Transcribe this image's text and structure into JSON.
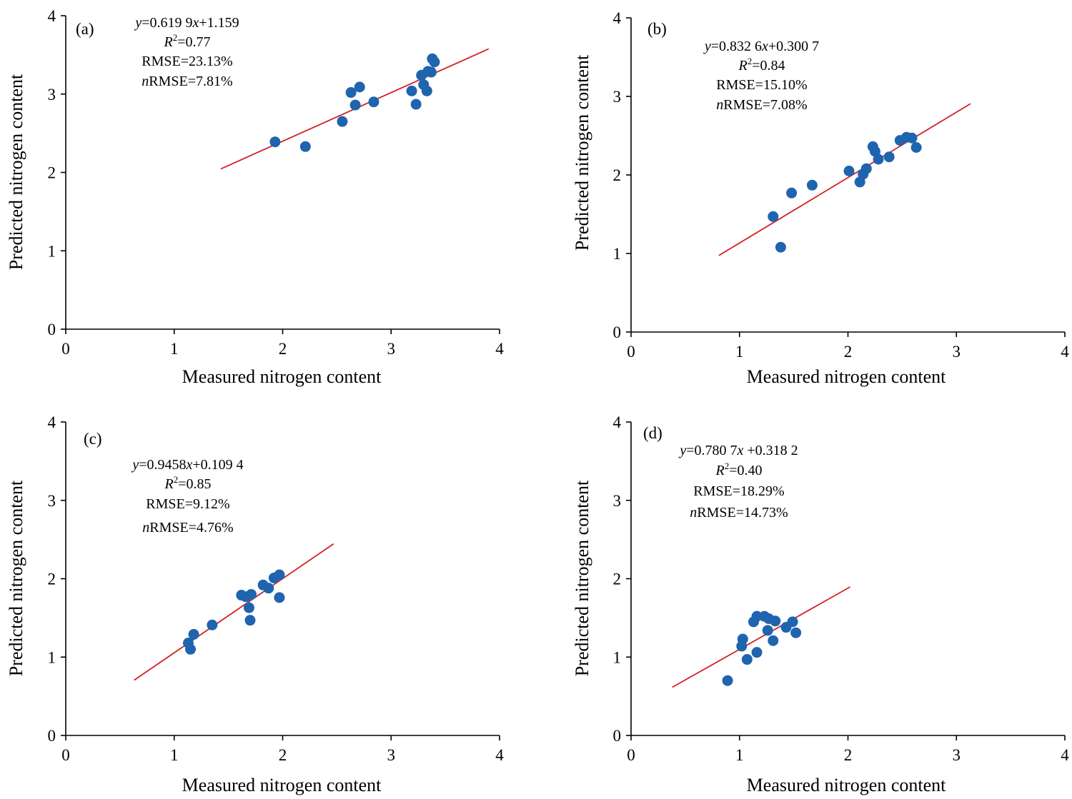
{
  "colors": {
    "point": "#1f64ae",
    "fit_line": "#d42027",
    "axis": "#000000"
  },
  "chart_data": [
    {
      "type": "scatter",
      "panel_label": "(a)",
      "xlabel": "Measured nitrogen content",
      "ylabel": "Predicted nitrogen content",
      "xlim": [
        0,
        4
      ],
      "ylim": [
        0,
        4
      ],
      "xticks": [
        "0",
        "1",
        "2",
        "3",
        "4"
      ],
      "yticks": [
        "0",
        "1",
        "2",
        "3",
        "4"
      ],
      "equation": {
        "y_var": "y",
        "rhs": "=0.619 9",
        "x_var": "x",
        "tail": "+1.159"
      },
      "r2": {
        "r": "R",
        "sup": "2",
        "value": "=0.77"
      },
      "rmse": "RMSE=23.13%",
      "nrmse": {
        "n": "n",
        "rest": "RMSE=7.81%"
      },
      "fit": {
        "slope": 0.6199,
        "intercept": 1.159,
        "x_range": [
          1.43,
          3.9
        ]
      },
      "points": [
        {
          "x": 1.93,
          "y": 2.39
        },
        {
          "x": 2.21,
          "y": 2.33
        },
        {
          "x": 2.55,
          "y": 2.65
        },
        {
          "x": 2.63,
          "y": 3.02
        },
        {
          "x": 2.67,
          "y": 2.86
        },
        {
          "x": 2.71,
          "y": 3.09
        },
        {
          "x": 2.84,
          "y": 2.9
        },
        {
          "x": 3.19,
          "y": 3.04
        },
        {
          "x": 3.23,
          "y": 2.87
        },
        {
          "x": 3.28,
          "y": 3.24
        },
        {
          "x": 3.3,
          "y": 3.12
        },
        {
          "x": 3.33,
          "y": 3.04
        },
        {
          "x": 3.34,
          "y": 3.29
        },
        {
          "x": 3.37,
          "y": 3.28
        },
        {
          "x": 3.38,
          "y": 3.45
        },
        {
          "x": 3.4,
          "y": 3.41
        }
      ]
    },
    {
      "type": "scatter",
      "panel_label": "(b)",
      "xlabel": "Measured nitrogen content",
      "ylabel": "Predicted nitrogen content",
      "xlim": [
        0,
        4
      ],
      "ylim": [
        0,
        4
      ],
      "xticks": [
        "0",
        "1",
        "2",
        "3",
        "4"
      ],
      "yticks": [
        "0",
        "1",
        "2",
        "3",
        "4"
      ],
      "equation": {
        "y_var": "y",
        "rhs": "=0.832 6",
        "x_var": "x",
        "tail": "+0.300 7"
      },
      "r2": {
        "r": "R",
        "sup": "2",
        "value": "=0.84"
      },
      "rmse": "RMSE=15.10%",
      "nrmse": {
        "n": "n",
        "rest": "RMSE=7.08%"
      },
      "fit": {
        "slope": 0.8326,
        "intercept": 0.3007,
        "x_range": [
          0.81,
          3.13
        ]
      },
      "points": [
        {
          "x": 1.31,
          "y": 1.47
        },
        {
          "x": 1.38,
          "y": 1.08
        },
        {
          "x": 1.48,
          "y": 1.77
        },
        {
          "x": 1.67,
          "y": 1.87
        },
        {
          "x": 2.01,
          "y": 2.05
        },
        {
          "x": 2.11,
          "y": 1.91
        },
        {
          "x": 2.14,
          "y": 2.01
        },
        {
          "x": 2.17,
          "y": 2.08
        },
        {
          "x": 2.23,
          "y": 2.36
        },
        {
          "x": 2.25,
          "y": 2.3
        },
        {
          "x": 2.28,
          "y": 2.2
        },
        {
          "x": 2.38,
          "y": 2.23
        },
        {
          "x": 2.48,
          "y": 2.44
        },
        {
          "x": 2.54,
          "y": 2.48
        },
        {
          "x": 2.59,
          "y": 2.47
        },
        {
          "x": 2.63,
          "y": 2.35
        }
      ]
    },
    {
      "type": "scatter",
      "panel_label": "(c)",
      "xlabel": "Measured nitrogen content",
      "ylabel": "Predicted nitrogen content",
      "xlim": [
        0,
        4
      ],
      "ylim": [
        0,
        4
      ],
      "xticks": [
        "0",
        "1",
        "2",
        "3",
        "4"
      ],
      "yticks": [
        "0",
        "1",
        "2",
        "3",
        "4"
      ],
      "equation": {
        "y_var": "y",
        "rhs": "=0.9458",
        "x_var": "x",
        "tail": "+0.109 4"
      },
      "r2": {
        "r": "R",
        "sup": "2",
        "value": "=0.85"
      },
      "rmse": "RMSE=9.12%",
      "nrmse": {
        "n": "n",
        "rest": "RMSE=4.76%"
      },
      "fit": {
        "slope": 0.9458,
        "intercept": 0.1094,
        "x_range": [
          0.63,
          2.47
        ]
      },
      "points": [
        {
          "x": 1.13,
          "y": 1.18
        },
        {
          "x": 1.15,
          "y": 1.1
        },
        {
          "x": 1.18,
          "y": 1.29
        },
        {
          "x": 1.35,
          "y": 1.41
        },
        {
          "x": 1.62,
          "y": 1.79
        },
        {
          "x": 1.66,
          "y": 1.77
        },
        {
          "x": 1.69,
          "y": 1.63
        },
        {
          "x": 1.7,
          "y": 1.47
        },
        {
          "x": 1.71,
          "y": 1.8
        },
        {
          "x": 1.82,
          "y": 1.92
        },
        {
          "x": 1.87,
          "y": 1.88
        },
        {
          "x": 1.92,
          "y": 2.01
        },
        {
          "x": 1.97,
          "y": 2.05
        },
        {
          "x": 1.97,
          "y": 1.76
        }
      ]
    },
    {
      "type": "scatter",
      "panel_label": "(d)",
      "xlabel": "Measured nitrogen content",
      "ylabel": "Predicted nitrogen content",
      "xlim": [
        0,
        4
      ],
      "ylim": [
        0,
        4
      ],
      "xticks": [
        "0",
        "1",
        "2",
        "3",
        "4"
      ],
      "yticks": [
        "0",
        "1",
        "2",
        "3",
        "4"
      ],
      "equation": {
        "y_var": "y",
        "rhs": "=0.780 7",
        "x_var": "x",
        "tail": " +0.318 2"
      },
      "r2": {
        "r": "R",
        "sup": "2",
        "value": "=0.40"
      },
      "rmse": "RMSE=18.29%",
      "nrmse": {
        "n": "n",
        "rest": "RMSE=14.73%"
      },
      "fit": {
        "slope": 0.7807,
        "intercept": 0.3182,
        "x_range": [
          0.38,
          2.02
        ]
      },
      "points": [
        {
          "x": 0.89,
          "y": 0.7
        },
        {
          "x": 1.02,
          "y": 1.14
        },
        {
          "x": 1.03,
          "y": 1.23
        },
        {
          "x": 1.07,
          "y": 0.97
        },
        {
          "x": 1.13,
          "y": 1.45
        },
        {
          "x": 1.16,
          "y": 1.52
        },
        {
          "x": 1.16,
          "y": 1.06
        },
        {
          "x": 1.23,
          "y": 1.52
        },
        {
          "x": 1.26,
          "y": 1.34
        },
        {
          "x": 1.27,
          "y": 1.49
        },
        {
          "x": 1.31,
          "y": 1.21
        },
        {
          "x": 1.33,
          "y": 1.46
        },
        {
          "x": 1.43,
          "y": 1.38
        },
        {
          "x": 1.49,
          "y": 1.45
        },
        {
          "x": 1.52,
          "y": 1.31
        }
      ]
    }
  ]
}
